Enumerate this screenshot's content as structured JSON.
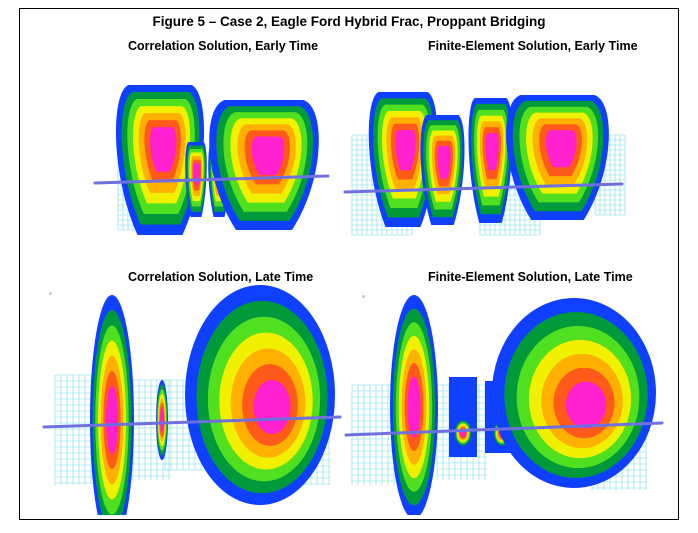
{
  "figure": {
    "title": "Figure 5 – Case 2, Eagle Ford Hybrid Frac, Proppant Bridging",
    "panels": [
      {
        "id": "tl",
        "title": "Correlation Solution, Early Time"
      },
      {
        "id": "tr",
        "title": "Finite-Element Solution, Early Time"
      },
      {
        "id": "bl",
        "title": "Correlation Solution, Late Time"
      },
      {
        "id": "br",
        "title": "Finite-Element Solution, Late Time"
      }
    ]
  },
  "colors": {
    "contour_scale": [
      "#1040ff",
      "#009a3a",
      "#50e020",
      "#f0f000",
      "#ffb000",
      "#ff5a1a",
      "#ff20d0"
    ],
    "well_line": "#6f6fe0",
    "grid_mesh": "#6ad8e8"
  }
}
